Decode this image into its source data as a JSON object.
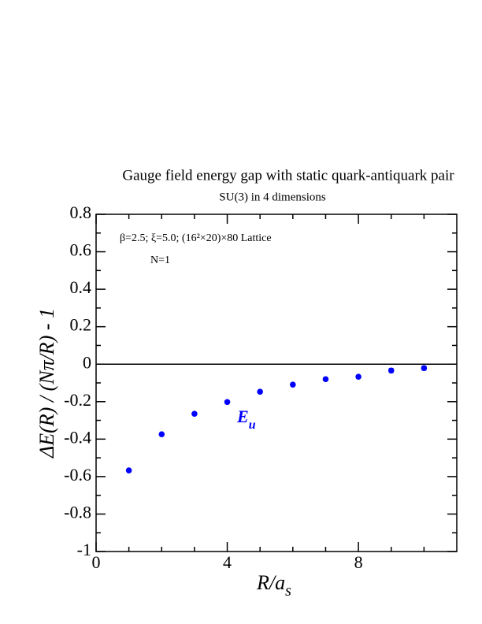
{
  "chart_data": {
    "type": "scatter",
    "title": "Gauge field energy gap with static quark-antiquark pair",
    "subtitle": "SU(3) in 4 dimensions",
    "annotations": [
      "β=2.5;  ξ=5.0;  (16²×20)×80 Lattice",
      "N=1"
    ],
    "series_label": {
      "main": "E",
      "sub": "u"
    },
    "xlabel": {
      "main": "R/a",
      "sub": "s"
    },
    "ylabel": "ΔE(R) / (Nπ/R) - 1",
    "color": "#0000ff",
    "x": [
      1,
      2,
      3,
      4,
      5,
      6,
      7,
      8,
      9,
      10
    ],
    "values": [
      -0.567,
      -0.374,
      -0.265,
      -0.202,
      -0.147,
      -0.109,
      -0.08,
      -0.067,
      -0.034,
      -0.021
    ],
    "errors": [
      0.004,
      0.004,
      0.004,
      0.004,
      0.005,
      0.005,
      0.007,
      0.006,
      0.01,
      0.01
    ],
    "xlim": [
      0,
      11
    ],
    "ylim": [
      -1,
      0.8
    ],
    "xticks": [
      0,
      4,
      8
    ],
    "yticks": [
      -1,
      -0.8,
      -0.6,
      -0.4,
      -0.2,
      0,
      0.2,
      0.4,
      0.6,
      0.8
    ],
    "x_minor_ticks": [
      1,
      2,
      3,
      5,
      6,
      7,
      9,
      10
    ],
    "y_minor_ticks": [
      -0.9,
      -0.7,
      -0.5,
      -0.3,
      -0.1,
      0.1,
      0.3,
      0.5,
      0.7
    ],
    "hline": 0
  }
}
